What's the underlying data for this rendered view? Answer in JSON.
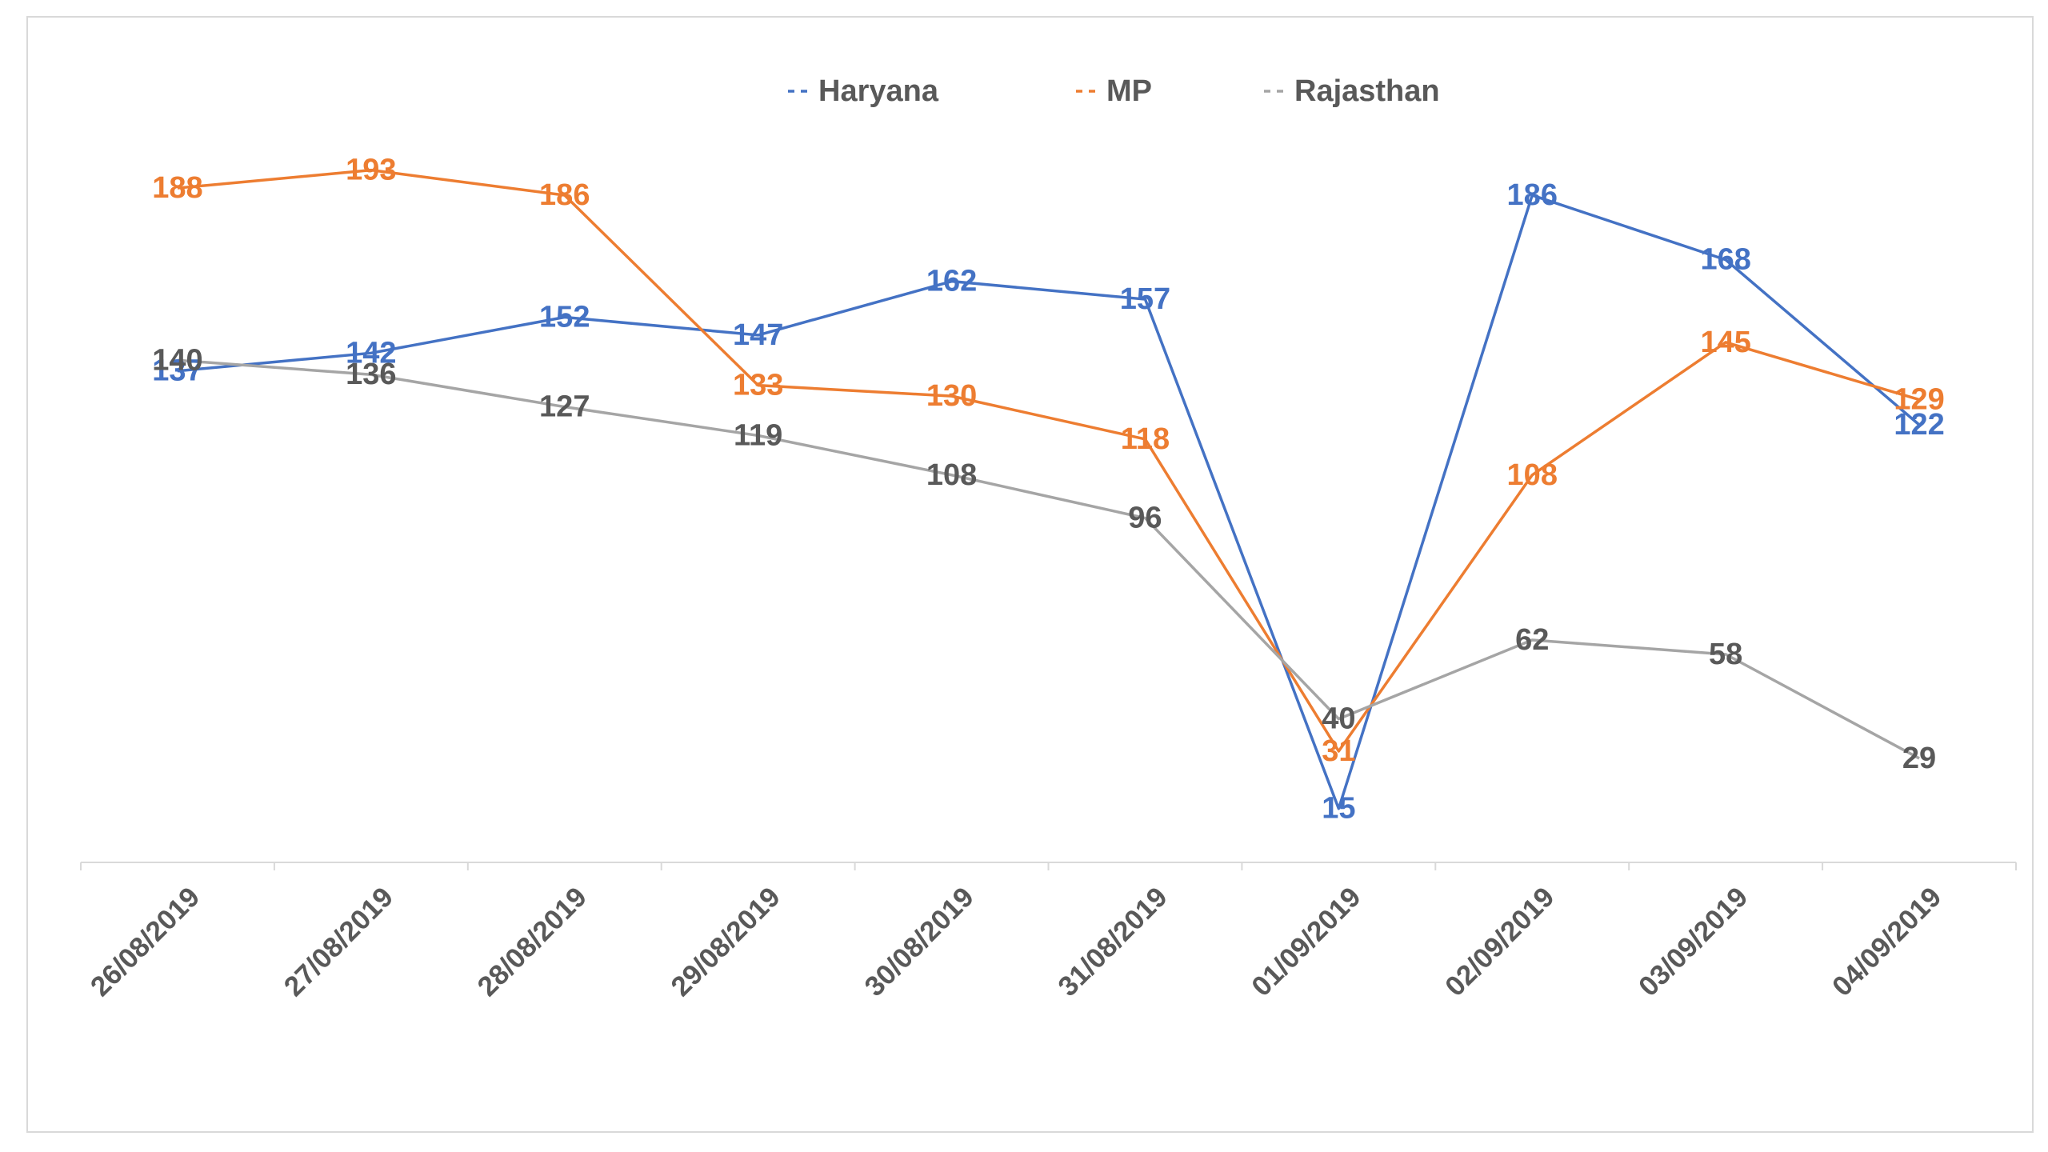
{
  "chart_data": {
    "type": "line",
    "title": "",
    "xlabel": "",
    "ylabel": "",
    "categories": [
      "26/08/2019",
      "27/08/2019",
      "28/08/2019",
      "29/08/2019",
      "30/08/2019",
      "31/08/2019",
      "01/09/2019",
      "02/09/2019",
      "03/09/2019",
      "04/09/2019"
    ],
    "series": [
      {
        "name": "Haryana",
        "color": "#4472c4",
        "values": [
          137,
          142,
          152,
          147,
          162,
          157,
          15,
          186,
          168,
          122
        ]
      },
      {
        "name": "MP",
        "color": "#ed7d31",
        "values": [
          188,
          193,
          186,
          133,
          130,
          118,
          31,
          108,
          145,
          129
        ]
      },
      {
        "name": "Rajasthan",
        "color": "#a5a5a5",
        "label_color": "#595959",
        "values": [
          140,
          136,
          127,
          119,
          108,
          96,
          40,
          62,
          58,
          29
        ]
      }
    ],
    "ylim": [
      0,
      215
    ],
    "grid": false,
    "legend": "top",
    "data_labels": true
  }
}
